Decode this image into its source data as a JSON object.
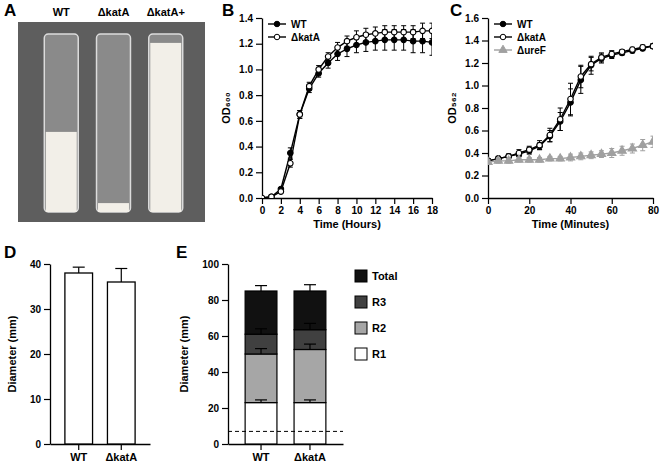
{
  "chart_data": [
    {
      "type": "image",
      "title": "A",
      "categories": [
        "WT",
        "ΔkatA",
        "ΔkatA+"
      ],
      "values": [
        45,
        5,
        95
      ],
      "ylim": [
        0,
        100
      ],
      "tick_labels": false
    },
    {
      "type": "line",
      "title": "B",
      "x_label": "Time (Hours)",
      "y_label": "OD₆₀₀",
      "legend": "upper-left",
      "x": [
        0,
        1,
        2,
        3,
        4,
        5,
        6,
        7,
        8,
        9,
        10,
        11,
        12,
        13,
        14,
        15,
        16,
        17,
        18
      ],
      "xlim": [
        0,
        18
      ],
      "xticks": [
        0,
        2,
        4,
        6,
        8,
        10,
        12,
        14,
        16,
        18
      ],
      "ylim": [
        0,
        1.4
      ],
      "yticks": [
        {
          "value": 0,
          "label": "0.0"
        },
        {
          "value": 0.2,
          "label": "0.2"
        },
        {
          "value": 0.4,
          "label": "0.4"
        },
        {
          "value": 0.6,
          "label": "0.6"
        },
        {
          "value": 0.8,
          "label": "0.8"
        },
        {
          "value": 1.0,
          "label": "1.0"
        },
        {
          "value": 1.2,
          "label": "1.2"
        },
        {
          "value": 1.4,
          "label": "1.4"
        }
      ],
      "series": [
        {
          "name": "WT",
          "color": "#000000",
          "marker": "filled-circle",
          "values": [
            0.0,
            0.01,
            0.07,
            0.35,
            0.65,
            0.85,
            0.97,
            1.05,
            1.12,
            1.16,
            1.19,
            1.21,
            1.22,
            1.23,
            1.23,
            1.23,
            1.22,
            1.22,
            1.21
          ],
          "errors": [
            0,
            0,
            0.01,
            0.04,
            0.03,
            0.03,
            0.03,
            0.04,
            0.05,
            0.06,
            0.06,
            0.07,
            0.07,
            0.08,
            0.08,
            0.08,
            0.09,
            0.09,
            0.1
          ]
        },
        {
          "name": "ΔkatA",
          "color": "#000000",
          "marker": "open-circle",
          "values": [
            0.0,
            0.01,
            0.05,
            0.27,
            0.65,
            0.87,
            1.0,
            1.1,
            1.17,
            1.22,
            1.25,
            1.27,
            1.28,
            1.29,
            1.29,
            1.29,
            1.29,
            1.3,
            1.3
          ],
          "errors": [
            0,
            0,
            0.01,
            0.03,
            0.03,
            0.03,
            0.03,
            0.03,
            0.04,
            0.04,
            0.05,
            0.05,
            0.05,
            0.05,
            0.05,
            0.05,
            0.05,
            0.06,
            0.06
          ]
        }
      ]
    },
    {
      "type": "line",
      "title": "C",
      "x_label": "Time (Minutes)",
      "y_label": "OD₅₆₂",
      "legend": "upper-left",
      "x": [
        0,
        5,
        10,
        15,
        20,
        25,
        30,
        35,
        40,
        45,
        50,
        55,
        60,
        65,
        70,
        75,
        80
      ],
      "xlim": [
        0,
        80
      ],
      "xticks": [
        0,
        20,
        40,
        60,
        80
      ],
      "ylim": [
        0,
        1.6
      ],
      "yticks": [
        {
          "value": 0,
          "label": "0.0"
        },
        {
          "value": 0.2,
          "label": "0.2"
        },
        {
          "value": 0.4,
          "label": "0.4"
        },
        {
          "value": 0.6,
          "label": "0.6"
        },
        {
          "value": 0.8,
          "label": "0.8"
        },
        {
          "value": 1.0,
          "label": "1.0"
        },
        {
          "value": 1.2,
          "label": "1.2"
        },
        {
          "value": 1.4,
          "label": "1.4"
        },
        {
          "value": 1.6,
          "label": "1.6"
        }
      ],
      "series": [
        {
          "name": "WT",
          "color": "#000000",
          "marker": "filled-circle",
          "values": [
            0.33,
            0.35,
            0.37,
            0.39,
            0.42,
            0.46,
            0.55,
            0.68,
            0.85,
            1.05,
            1.18,
            1.24,
            1.27,
            1.29,
            1.31,
            1.33,
            1.35
          ],
          "errors": [
            0.02,
            0.02,
            0.02,
            0.02,
            0.03,
            0.03,
            0.05,
            0.08,
            0.12,
            0.12,
            0.08,
            0.04,
            0.03,
            0.02,
            0.02,
            0.02,
            0.02
          ]
        },
        {
          "name": "ΔkatA",
          "color": "#000000",
          "marker": "open-circle",
          "values": [
            0.33,
            0.35,
            0.37,
            0.4,
            0.43,
            0.47,
            0.56,
            0.7,
            0.88,
            1.08,
            1.19,
            1.25,
            1.28,
            1.3,
            1.32,
            1.34,
            1.35
          ],
          "errors": [
            0.02,
            0.02,
            0.02,
            0.03,
            0.03,
            0.04,
            0.06,
            0.1,
            0.14,
            0.1,
            0.06,
            0.04,
            0.03,
            0.02,
            0.02,
            0.02,
            0.02
          ]
        },
        {
          "name": "ΔureF",
          "color": "#a0a0a0",
          "marker": "triangle",
          "values": [
            0.32,
            0.33,
            0.33,
            0.34,
            0.34,
            0.34,
            0.35,
            0.35,
            0.36,
            0.37,
            0.38,
            0.39,
            0.4,
            0.42,
            0.44,
            0.47,
            0.5
          ],
          "errors": [
            0.02,
            0.02,
            0.02,
            0.02,
            0.02,
            0.02,
            0.02,
            0.02,
            0.03,
            0.03,
            0.03,
            0.03,
            0.04,
            0.04,
            0.04,
            0.05,
            0.05
          ]
        }
      ]
    },
    {
      "type": "bar",
      "title": "D",
      "y_label": "Diameter (mm)",
      "categories": [
        "WT",
        "ΔkatA"
      ],
      "values": [
        38,
        36
      ],
      "errors": [
        1.3,
        3
      ],
      "color": "#ffffff",
      "ylim": [
        0,
        40
      ],
      "yticks": [
        0,
        10,
        20,
        30,
        40
      ]
    },
    {
      "type": "bar",
      "title": "E",
      "y_label": "Diameter (mm)",
      "stacked": true,
      "legend": "right",
      "categories": [
        "WT",
        "ΔkatA"
      ],
      "threshold": 7,
      "ylim": [
        0,
        100
      ],
      "yticks": [
        0,
        20,
        40,
        60,
        80,
        100
      ],
      "series": [
        {
          "name": "R1",
          "color": "#ffffff",
          "values": [
            23,
            23
          ],
          "errors": [
            1.5,
            1.5
          ]
        },
        {
          "name": "R2",
          "color": "#a6a6a6",
          "values": [
            27,
            29.5
          ],
          "errors": [
            3,
            3
          ]
        },
        {
          "name": "R3",
          "color": "#404040",
          "values": [
            11,
            11
          ],
          "errors": [
            3,
            3.5
          ]
        },
        {
          "name": "Total",
          "color": "#111111",
          "values": [
            24,
            21.5
          ],
          "errors": [
            3,
            3.5
          ]
        }
      ]
    }
  ]
}
